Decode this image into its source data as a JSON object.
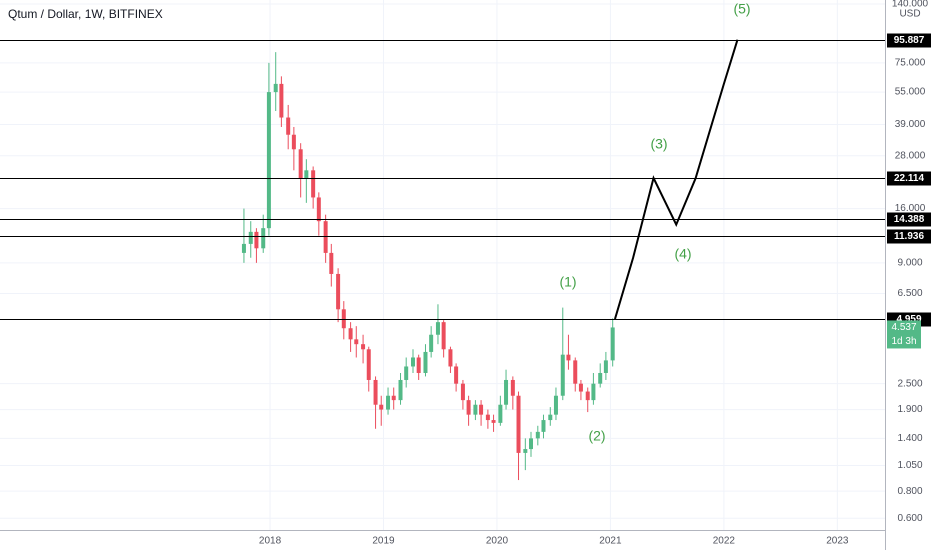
{
  "chart_data": {
    "type": "candlestick",
    "title": "Qtum / Dollar, 1W, BITFINEX",
    "currency": "USD",
    "log_scale": true,
    "grid": true,
    "xlim": [
      2015.62,
      2023.42
    ],
    "xticks": [
      2018,
      2019,
      2020,
      2021,
      2022,
      2023
    ],
    "ylim": [
      0.53,
      146
    ],
    "yticks": [
      {
        "value": 140,
        "label": "140.000"
      },
      {
        "value": 75,
        "label": "75.000"
      },
      {
        "value": 55,
        "label": "55.000"
      },
      {
        "value": 39,
        "label": "39.000"
      },
      {
        "value": 28,
        "label": "28.000"
      },
      {
        "value": 16,
        "label": "16.000"
      },
      {
        "value": 9,
        "label": "9.000"
      },
      {
        "value": 6.5,
        "label": "6.500"
      },
      {
        "value": 2.5,
        "label": "2.500"
      },
      {
        "value": 1.9,
        "label": "1.900"
      },
      {
        "value": 1.4,
        "label": "1.400"
      },
      {
        "value": 1.05,
        "label": "1.050"
      },
      {
        "value": 0.8,
        "label": "0.800"
      },
      {
        "value": 0.6,
        "label": "0.600"
      }
    ],
    "up_color": "#53b987",
    "down_color": "#eb4d5c",
    "series": [
      {
        "x": [
          2017.77,
          2017.83,
          2017.88,
          2017.94,
          2017.99,
          2018.05,
          2018.1,
          2018.16,
          2018.21,
          2018.27,
          2018.32,
          2018.38,
          2018.43,
          2018.49,
          2018.54,
          2018.6,
          2018.65,
          2018.71,
          2018.76,
          2018.82,
          2018.87,
          2018.93,
          2018.98,
          2019.04,
          2019.09,
          2019.15,
          2019.2,
          2019.26,
          2019.31,
          2019.37,
          2019.42,
          2019.48,
          2019.53,
          2019.59,
          2019.64,
          2019.7,
          2019.75,
          2019.81,
          2019.86,
          2019.92,
          2019.97,
          2020.03,
          2020.08,
          2020.14,
          2020.19,
          2020.25,
          2020.3,
          2020.36,
          2020.41,
          2020.47,
          2020.52,
          2020.58,
          2020.63,
          2020.69,
          2020.74,
          2020.8,
          2020.85,
          2020.91,
          2020.96,
          2021.02
        ],
        "open": [
          10,
          11,
          12.5,
          10.5,
          13,
          55,
          60,
          42,
          35,
          30,
          22,
          24,
          18,
          14,
          10,
          8,
          5.5,
          4.5,
          4.0,
          3.8,
          3.6,
          2.6,
          2.0,
          1.9,
          2.2,
          2.1,
          2.6,
          3.0,
          3.3,
          2.8,
          3.5,
          4.2,
          4.8,
          3.6,
          3.0,
          2.5,
          2.1,
          1.8,
          2.0,
          1.8,
          1.7,
          1.65,
          2.0,
          2.6,
          2.2,
          1.2,
          1.25,
          1.4,
          1.5,
          1.7,
          1.8,
          2.2,
          3.4,
          3.2,
          2.5,
          2.3,
          2.1,
          2.5,
          2.8,
          3.2
        ],
        "high": [
          16,
          14,
          13,
          15,
          75,
          84,
          65,
          48,
          38,
          32,
          27,
          25,
          19,
          15,
          11,
          8.5,
          6,
          4.8,
          4.6,
          4.2,
          3.7,
          2.7,
          2.2,
          2.4,
          2.4,
          2.8,
          3.3,
          3.6,
          3.4,
          3.8,
          4.6,
          5.8,
          4.9,
          3.7,
          3.1,
          2.6,
          2.2,
          2.1,
          2.1,
          1.9,
          1.8,
          2.2,
          2.9,
          2.7,
          2.3,
          1.4,
          1.5,
          1.6,
          1.8,
          1.95,
          2.4,
          5.6,
          4.2,
          3.3,
          2.6,
          2.4,
          2.8,
          3.1,
          3.5,
          5.0
        ],
        "low": [
          9,
          9.5,
          9,
          10,
          12,
          45,
          38,
          30,
          24,
          18,
          17,
          16,
          12,
          9,
          7,
          4.8,
          4,
          3.5,
          3.3,
          3.1,
          2.3,
          1.55,
          1.6,
          1.8,
          1.9,
          2.0,
          2.4,
          2.8,
          2.6,
          2.7,
          3.3,
          3.8,
          3.3,
          2.8,
          2.3,
          1.9,
          1.6,
          1.7,
          1.6,
          1.55,
          1.5,
          1.6,
          1.9,
          1.9,
          0.9,
          1.0,
          1.15,
          1.3,
          1.4,
          1.6,
          1.7,
          2.1,
          2.9,
          2.3,
          2.1,
          1.85,
          2.0,
          2.4,
          2.6,
          3.0
        ],
        "close": [
          11,
          12.5,
          10.5,
          13,
          55,
          60,
          42,
          35,
          30,
          22,
          24,
          18,
          14,
          10,
          8,
          5.5,
          4.5,
          4.0,
          3.8,
          3.6,
          2.6,
          2.0,
          1.9,
          2.2,
          2.1,
          2.6,
          3.0,
          3.3,
          2.8,
          3.5,
          4.2,
          4.8,
          3.6,
          3.0,
          2.5,
          2.1,
          1.8,
          2.0,
          1.8,
          1.7,
          1.65,
          2.0,
          2.6,
          2.2,
          1.2,
          1.25,
          1.4,
          1.5,
          1.7,
          1.8,
          2.2,
          3.4,
          3.2,
          2.5,
          2.3,
          2.1,
          2.5,
          2.8,
          3.2,
          4.537
        ]
      }
    ],
    "levels": [
      95.887,
      22.114,
      14.388,
      11.936,
      4.959
    ],
    "last_price": 4.537,
    "countdown": "1d 3h",
    "projection": {
      "color": "#000000",
      "x": [
        2021.04,
        2021.2,
        2021.38,
        2021.58,
        2021.75,
        2022.0,
        2022.12
      ],
      "values": [
        4.959,
        9.5,
        22.114,
        13.5,
        22,
        60,
        95.887
      ]
    },
    "annotations": [
      "(1)",
      "(2)",
      "(3)",
      "(4)",
      "(5)"
    ]
  }
}
